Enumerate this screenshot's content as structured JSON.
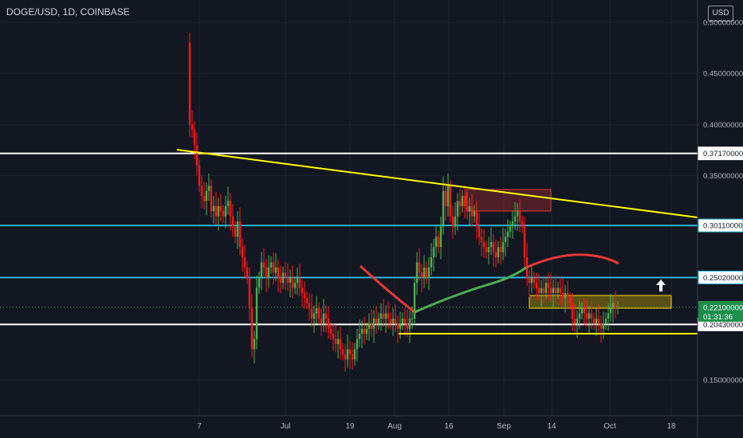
{
  "header": {
    "title": "DOGE/USD, 1D, COINBASE"
  },
  "price_axis": {
    "currency_label": "USD"
  },
  "colors": {
    "background": "#131722",
    "grid": "#1f2330",
    "up": "#26a69a",
    "up_candle": "#4caf50",
    "down_candle": "#ff1a1a",
    "white_level": "#ffffff",
    "cyan_level": "#2cb5d6",
    "yellow": "#ffff00",
    "ma_red": "#e53935",
    "ma_green": "#4caf50",
    "supply_zone": "#e53935",
    "demand_zone": "#ffd600"
  },
  "chart_data": {
    "type": "candlestick",
    "x_axis_labels": [
      "7",
      "Jul",
      "19",
      "Aug",
      "16",
      "Sep",
      "14",
      "Oct",
      "18"
    ],
    "y_axis_ticks": [
      "0.50000000",
      "0.45000000",
      "0.40000000",
      "0.35000000",
      "0.15000000"
    ],
    "y_axis_tick_values": [
      0.5,
      0.45,
      0.4,
      0.35,
      0.15
    ],
    "ylim": [
      0.13,
      0.51
    ],
    "horizontal_levels": [
      {
        "value": 0.3717,
        "label": "0.37170000",
        "color": "#ffffff"
      },
      {
        "value": 0.3011,
        "label": "0.30110000",
        "color": "#2cb5d6"
      },
      {
        "value": 0.2502,
        "label": "0.25020000",
        "color": "#2cb5d6"
      },
      {
        "value": 0.2043,
        "label": "0.20430000",
        "color": "#ffffff"
      }
    ],
    "current_price": {
      "value": 0.221,
      "label": "0.22100000",
      "countdown": "01:31:36"
    },
    "annotations": [
      "trendline",
      "supply-zone",
      "demand-zone",
      "support-line",
      "up-arrow",
      "moving-averages"
    ]
  }
}
